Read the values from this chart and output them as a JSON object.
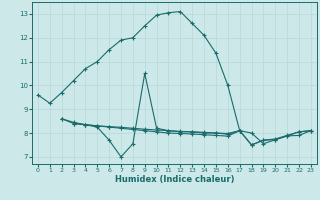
{
  "title": "",
  "xlabel": "Humidex (Indice chaleur)",
  "ylabel": "",
  "bg_color": "#cde8e8",
  "grid_color": "#b8d8d8",
  "line_color": "#1a6b6b",
  "xlim": [
    -0.5,
    23.5
  ],
  "ylim": [
    6.7,
    13.5
  ],
  "yticks": [
    7,
    8,
    9,
    10,
    11,
    12,
    13
  ],
  "xticks": [
    0,
    1,
    2,
    3,
    4,
    5,
    6,
    7,
    8,
    9,
    10,
    11,
    12,
    13,
    14,
    15,
    16,
    17,
    18,
    19,
    20,
    21,
    22,
    23
  ],
  "lines": [
    {
      "x": [
        0,
        1,
        2,
        3,
        4,
        5,
        6,
        7,
        8,
        9,
        10,
        11,
        12,
        13,
        14,
        15,
        16,
        17
      ],
      "y": [
        9.6,
        9.25,
        9.7,
        10.2,
        10.7,
        11.0,
        11.5,
        11.9,
        12.0,
        12.5,
        12.95,
        13.05,
        13.1,
        12.6,
        12.1,
        11.35,
        10.0,
        8.1
      ]
    },
    {
      "x": [
        2,
        3,
        4,
        5,
        6,
        7,
        8,
        9,
        10,
        11,
        12,
        13,
        14,
        15,
        16,
        17,
        18,
        19,
        20,
        21,
        22,
        23
      ],
      "y": [
        8.6,
        8.45,
        8.35,
        8.25,
        7.7,
        7.0,
        7.55,
        10.5,
        8.2,
        8.1,
        8.05,
        8.05,
        8.0,
        8.0,
        7.95,
        8.1,
        7.5,
        7.7,
        7.75,
        7.9,
        8.05,
        8.1
      ]
    },
    {
      "x": [
        3,
        4,
        5,
        6,
        7,
        8,
        9,
        10,
        11,
        12,
        13,
        14,
        15,
        16,
        17,
        18,
        19,
        20,
        21,
        22,
        23
      ],
      "y": [
        8.4,
        8.35,
        8.3,
        8.25,
        8.2,
        8.15,
        8.1,
        8.05,
        8.0,
        7.98,
        7.96,
        7.93,
        7.9,
        7.87,
        8.1,
        7.5,
        7.7,
        7.72,
        7.88,
        8.05,
        8.1
      ]
    },
    {
      "x": [
        2,
        3,
        4,
        5,
        6,
        7,
        8,
        9,
        10,
        11,
        12,
        13,
        14,
        15,
        16,
        17,
        18,
        19,
        20,
        21,
        22,
        23
      ],
      "y": [
        8.6,
        8.4,
        8.35,
        8.3,
        8.27,
        8.24,
        8.2,
        8.16,
        8.13,
        8.1,
        8.07,
        8.05,
        8.03,
        8.0,
        7.98,
        8.1,
        8.0,
        7.55,
        7.72,
        7.88,
        7.9,
        8.1
      ]
    }
  ]
}
